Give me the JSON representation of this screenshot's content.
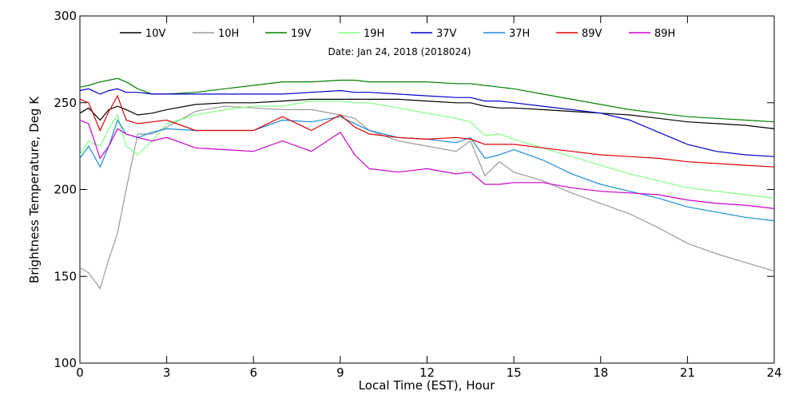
{
  "chart_data": {
    "type": "line",
    "title": "",
    "annotation": "Date: Jan 24, 2018 (2018024)",
    "xlabel": "Local Time (EST), Hour",
    "ylabel": "Brightness Temperature, Deg K",
    "xlim": [
      0,
      24
    ],
    "ylim": [
      100,
      300
    ],
    "xticks": [
      0,
      3,
      6,
      9,
      12,
      15,
      18,
      21,
      24
    ],
    "yticks": [
      100,
      150,
      200,
      250,
      300
    ],
    "grid": false,
    "legend_position": "top",
    "x": [
      0,
      0.3,
      0.7,
      1.0,
      1.3,
      1.6,
      2.0,
      2.5,
      3.0,
      4.0,
      5.0,
      6.0,
      7.0,
      8.0,
      9.0,
      9.5,
      10.0,
      11.0,
      12.0,
      13.0,
      13.5,
      14.0,
      14.5,
      15.0,
      16.0,
      17.0,
      18.0,
      19.0,
      20.0,
      21.0,
      22.0,
      23.0,
      24.0
    ],
    "series": [
      {
        "name": "10V",
        "color": "#000000",
        "values": [
          244,
          247,
          240,
          246,
          248,
          246,
          243,
          244,
          246,
          249,
          250,
          250,
          251,
          252,
          252,
          252,
          252,
          252,
          251,
          250,
          250,
          248,
          247,
          247,
          246,
          245,
          244,
          243,
          241,
          239,
          238,
          237,
          235
        ]
      },
      {
        "name": "10H",
        "color": "#9a9a9a",
        "values": [
          155,
          152,
          143,
          160,
          175,
          200,
          232,
          232,
          236,
          245,
          248,
          247,
          246,
          246,
          243,
          241,
          234,
          228,
          225,
          222,
          228,
          208,
          216,
          210,
          205,
          198,
          192,
          186,
          178,
          169,
          163,
          158,
          153
        ]
      },
      {
        "name": "19V",
        "color": "#008000",
        "values": [
          259,
          260,
          262,
          263,
          264,
          262,
          258,
          255,
          255,
          256,
          258,
          260,
          262,
          262,
          263,
          263,
          262,
          262,
          262,
          261,
          261,
          260,
          259,
          258,
          255,
          252,
          249,
          246,
          244,
          242,
          241,
          240,
          239
        ]
      },
      {
        "name": "19H",
        "color": "#80ff80",
        "values": [
          220,
          228,
          225,
          235,
          243,
          225,
          220,
          228,
          238,
          243,
          246,
          248,
          248,
          251,
          251,
          250,
          250,
          247,
          244,
          241,
          239,
          231,
          232,
          229,
          224,
          219,
          214,
          209,
          205,
          201,
          199,
          197,
          195
        ]
      },
      {
        "name": "37V",
        "color": "#0000cc",
        "values": [
          257,
          258,
          255,
          257,
          258,
          256,
          256,
          255,
          255,
          255,
          255,
          255,
          255,
          256,
          257,
          256,
          256,
          255,
          254,
          253,
          253,
          251,
          251,
          250,
          248,
          246,
          244,
          240,
          233,
          226,
          222,
          220,
          219
        ]
      },
      {
        "name": "37H",
        "color": "#1a8cdb",
        "values": [
          218,
          225,
          213,
          225,
          240,
          232,
          230,
          233,
          235,
          234,
          234,
          234,
          240,
          239,
          242,
          238,
          234,
          230,
          229,
          227,
          230,
          218,
          220,
          223,
          217,
          209,
          203,
          199,
          195,
          190,
          187,
          184,
          182
        ]
      },
      {
        "name": "89V",
        "color": "#e00000",
        "values": [
          252,
          250,
          234,
          245,
          254,
          240,
          238,
          239,
          240,
          234,
          234,
          234,
          242,
          234,
          243,
          236,
          232,
          230,
          229,
          230,
          229,
          226,
          226,
          226,
          224,
          222,
          220,
          219,
          218,
          216,
          215,
          214,
          213
        ]
      },
      {
        "name": "89H",
        "color": "#cc00cc",
        "values": [
          240,
          238,
          218,
          225,
          235,
          232,
          230,
          228,
          230,
          224,
          223,
          222,
          228,
          222,
          233,
          220,
          212,
          210,
          212,
          209,
          210,
          203,
          203,
          204,
          204,
          201,
          199,
          198,
          197,
          194,
          192,
          191,
          189
        ]
      }
    ]
  }
}
